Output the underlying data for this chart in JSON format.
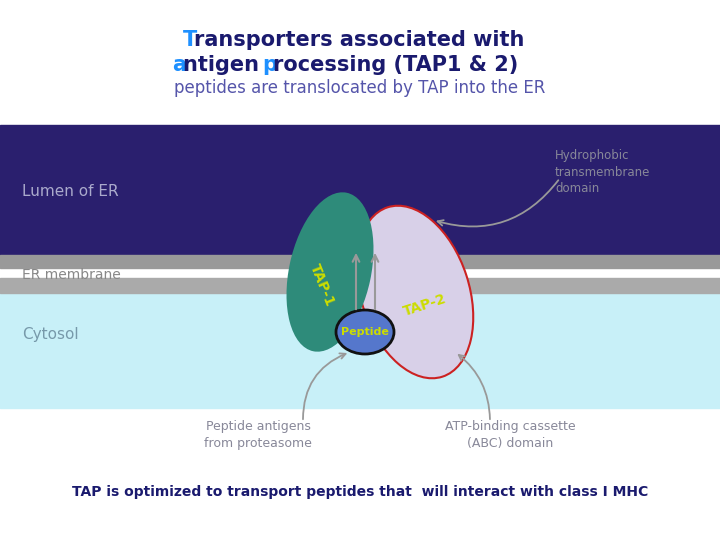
{
  "title_line1_part1": "T",
  "title_line1_part2": "ransporters associated with",
  "title_line2_part1": "a",
  "title_line2_part2": "ntigen ",
  "title_line2_part3": "p",
  "title_line2_part4": "rocessing (TAP1 & 2)",
  "title_line3": "peptides are translocated by TAP into the ER",
  "title_color_main": "#1a1a6e",
  "title_color_highlight": "#1e90ff",
  "title_line3_color": "#5555aa",
  "lumen_label": "Lumen of ER",
  "membrane_label": "ER membrane",
  "cytosol_label": "Cytosol",
  "tap1_label": "TAP-1",
  "tap2_label": "TAP-2",
  "peptide_label": "Peptide",
  "hydrophobic_label": "Hydrophobic\ntransmembrane\ndomain",
  "peptide_antigens_label": "Peptide antigens\nfrom proteasome",
  "abc_label": "ATP-binding cassette\n(ABC) domain",
  "bottom_text": "TAP is optimized to transport peptides that  will interact with class I MHC",
  "lumen_bg": "#2a1f6e",
  "cytosol_bg": "#c8f0f8",
  "membrane_top_color": "#999999",
  "membrane_bot_color": "#aaaaaa",
  "tap1_color": "#2e8b7a",
  "tap2_fill": "#d8d0e8",
  "tap2_edge": "#cc2222",
  "peptide_fill": "#5577cc",
  "peptide_edge": "#111111",
  "label_color": "#ccdd00",
  "arrow_color": "#999999",
  "text_gray": "#888899",
  "lumen_text_color": "#aaaacc",
  "membrane_text_color": "#888888",
  "cytosol_text_color": "#7799aa"
}
